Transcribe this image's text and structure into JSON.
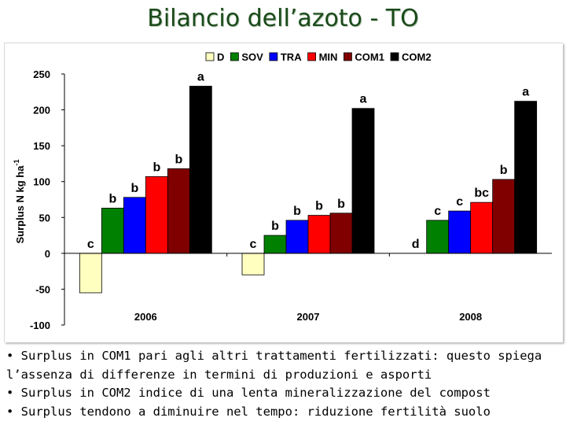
{
  "title": "Bilancio dell’azoto - TO",
  "chart_data": {
    "type": "bar",
    "categories": [
      "2006",
      "2007",
      "2008"
    ],
    "ylabel_main": "Surplus N kg ha",
    "ylabel_sup": "-1",
    "ylim": [
      -100,
      250
    ],
    "yticks": [
      250,
      200,
      150,
      100,
      50,
      0,
      -50,
      -100
    ],
    "grid": false,
    "legend_position": "top",
    "series": [
      {
        "name": "D",
        "color": "#ffffc0",
        "values": [
          -55,
          -30,
          0
        ],
        "labels": [
          "c",
          "c",
          "d"
        ]
      },
      {
        "name": "SOV",
        "color": "#008000",
        "values": [
          63,
          25,
          46
        ],
        "labels": [
          "b",
          "b",
          "c"
        ]
      },
      {
        "name": "TRA",
        "color": "#0000ff",
        "values": [
          78,
          46,
          59
        ],
        "labels": [
          "b",
          "b",
          "c"
        ]
      },
      {
        "name": "MIN",
        "color": "#ff0000",
        "values": [
          107,
          53,
          71
        ],
        "labels": [
          "b",
          "b",
          "bc"
        ]
      },
      {
        "name": "COM1",
        "color": "#800000",
        "values": [
          118,
          56,
          103
        ],
        "labels": [
          "b",
          "b",
          "b"
        ]
      },
      {
        "name": "COM2",
        "color": "#000000",
        "values": [
          233,
          202,
          212
        ],
        "labels": [
          "a",
          "a",
          "a"
        ]
      }
    ]
  },
  "notes": [
    "• Surplus in COM1 pari agli altri trattamenti fertilizzati: questo spiega",
    "l’assenza di differenze in termini di produzioni e asporti",
    "• Surplus in COM2 indice di una lenta mineralizzazione del compost",
    "• Surplus tendono a diminuire nel tempo: riduzione fertilità suolo"
  ]
}
